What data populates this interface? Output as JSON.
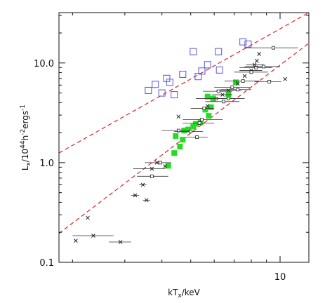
{
  "chart_data": {
    "type": "scatter",
    "title": "",
    "xlabel": {
      "base": "kT",
      "sub": "x",
      "rest": "/keV"
    },
    "ylabel": {
      "base": "L",
      "sub": "x",
      "mid": "/10",
      "sup1": "44",
      "mid2": "h",
      "sup2": "-2",
      "mid3": "ergs",
      "sup3": "-1"
    },
    "x_scale": "log",
    "y_scale": "log",
    "xlim": [
      1.8,
      12.5
    ],
    "ylim": [
      0.1,
      32
    ],
    "x_ticks": [
      {
        "value": 10,
        "label": "10"
      }
    ],
    "y_ticks": [
      {
        "value": 0.1,
        "label": "0.1"
      },
      {
        "value": 1.0,
        "label": "1.0"
      },
      {
        "value": 10.0,
        "label": "10.0"
      }
    ],
    "grid": false,
    "colors": {
      "open_squares": "#5555dd",
      "filled_squares": "#22dd22",
      "crosses": "#222222",
      "error_bars": "#333333",
      "lines": "#dd2222"
    },
    "fit_lines": [
      {
        "name": "upper",
        "style": "dashed",
        "points": [
          [
            1.8,
            1.25
          ],
          [
            12.5,
            32
          ]
        ]
      },
      {
        "name": "lower",
        "style": "dashed",
        "points": [
          [
            1.8,
            0.195
          ],
          [
            12.5,
            15.8
          ]
        ]
      }
    ],
    "series": [
      {
        "marker": "open-square",
        "points": [
          [
            3.6,
            5.3
          ],
          [
            3.8,
            6.1
          ],
          [
            4.0,
            5.0
          ],
          [
            4.15,
            7.0
          ],
          [
            4.25,
            6.4
          ],
          [
            4.4,
            4.8
          ],
          [
            4.7,
            7.7
          ],
          [
            5.1,
            13.0
          ],
          [
            5.3,
            7.3
          ],
          [
            5.45,
            8.3
          ],
          [
            5.7,
            9.6
          ],
          [
            6.2,
            13.0
          ],
          [
            6.25,
            8.5
          ],
          [
            7.5,
            16.3
          ],
          [
            7.8,
            15.5
          ]
        ]
      },
      {
        "marker": "filled-square",
        "points": [
          [
            4.2,
            0.93
          ],
          [
            4.4,
            1.25
          ],
          [
            4.6,
            1.45
          ],
          [
            4.7,
            1.7
          ],
          [
            4.45,
            1.85
          ],
          [
            4.75,
            2.1
          ],
          [
            4.9,
            2.15
          ],
          [
            5.1,
            2.3
          ],
          [
            5.2,
            2.45
          ],
          [
            5.4,
            2.55
          ],
          [
            5.6,
            3.4
          ],
          [
            5.75,
            2.95
          ],
          [
            5.85,
            3.6
          ],
          [
            5.95,
            4.4
          ],
          [
            5.7,
            4.6
          ],
          [
            6.7,
            4.8
          ],
          [
            7.1,
            6.4
          ]
        ]
      },
      {
        "marker": "cross",
        "points": [
          {
            "x": 2.05,
            "y": 0.165
          },
          {
            "x": 2.25,
            "y": 0.28
          },
          {
            "x": 2.35,
            "y": 0.185,
            "xerr": [
              2.0,
              2.75
            ]
          },
          {
            "x": 2.9,
            "y": 0.16,
            "xerr": [
              2.65,
              3.15
            ]
          },
          {
            "x": 3.25,
            "y": 0.47,
            "xerr": [
              3.15,
              3.35
            ]
          },
          {
            "x": 3.45,
            "y": 0.6,
            "xerr": [
              3.35,
              3.55
            ]
          },
          {
            "x": 3.55,
            "y": 0.42,
            "xerr": [
              3.45,
              3.65
            ]
          },
          {
            "x": 3.7,
            "y": 0.87,
            "xerr": [
              3.2,
              4.1
            ]
          },
          {
            "x": 3.85,
            "y": 1.0,
            "xerr": [
              3.6,
              4.1
            ]
          },
          {
            "x": 4.1,
            "y": 0.92
          },
          {
            "x": 4.55,
            "y": 2.9
          },
          {
            "x": 5.7,
            "y": 3.7
          },
          {
            "x": 6.4,
            "y": 4.8,
            "xerr": [
              5.9,
              6.9
            ]
          },
          {
            "x": 6.7,
            "y": 5.3,
            "xerr": [
              6.1,
              7.4
            ]
          },
          {
            "x": 7.2,
            "y": 6.2
          },
          {
            "x": 7.6,
            "y": 7.4
          },
          {
            "x": 8.0,
            "y": 8.4,
            "xerr": [
              7.3,
              8.7
            ]
          },
          {
            "x": 8.2,
            "y": 9.6,
            "xerr": [
              7.7,
              8.8
            ]
          },
          {
            "x": 8.35,
            "y": 10.5
          },
          {
            "x": 8.5,
            "y": 12.3
          },
          {
            "x": 10.4,
            "y": 6.9
          }
        ]
      },
      {
        "marker": "small-square",
        "points": [
          {
            "x": 3.7,
            "y": 0.73,
            "xerr": [
              3.3,
              4.2
            ]
          },
          {
            "x": 3.95,
            "y": 1.0,
            "xerr": [
              3.5,
              4.3
            ]
          },
          {
            "x": 4.55,
            "y": 2.1,
            "xerr": [
              4.0,
              5.0
            ]
          },
          {
            "x": 5.0,
            "y": 2.05,
            "xerr": [
              4.4,
              5.5
            ]
          },
          {
            "x": 5.25,
            "y": 1.8,
            "xerr": [
              4.8,
              5.7
            ]
          },
          {
            "x": 5.35,
            "y": 2.5,
            "xerr": [
              4.7,
              6.0
            ]
          },
          {
            "x": 5.55,
            "y": 3.5,
            "xerr": [
              5.0,
              6.0
            ]
          },
          {
            "x": 5.45,
            "y": 2.7,
            "xerr": [
              4.7,
              6.4
            ]
          },
          {
            "x": 6.1,
            "y": 4.4,
            "xerr": [
              5.2,
              7.0
            ]
          },
          {
            "x": 6.2,
            "y": 5.2,
            "xerr": [
              5.5,
              6.9
            ]
          },
          {
            "x": 6.45,
            "y": 4.1,
            "xerr": [
              5.6,
              7.3
            ]
          },
          {
            "x": 6.7,
            "y": 4.4,
            "xerr": [
              5.8,
              7.6
            ]
          },
          {
            "x": 6.9,
            "y": 5.7,
            "xerr": [
              6.0,
              7.9
            ]
          },
          {
            "x": 7.2,
            "y": 5.4,
            "xerr": [
              6.3,
              8.0
            ]
          },
          {
            "x": 7.5,
            "y": 6.6,
            "xerr": [
              6.5,
              8.5
            ]
          },
          {
            "x": 8.0,
            "y": 8.1,
            "xerr": [
              7.0,
              9.1
            ]
          },
          {
            "x": 8.3,
            "y": 9.0,
            "xerr": [
              7.3,
              9.4
            ]
          },
          {
            "x": 8.8,
            "y": 9.2,
            "xerr": [
              7.6,
              10.0
            ]
          },
          {
            "x": 9.2,
            "y": 6.5,
            "xerr": [
              8.2,
              10.1
            ]
          },
          {
            "x": 9.5,
            "y": 14.2,
            "xerr": [
              7.6,
              11.5
            ]
          }
        ]
      }
    ]
  }
}
